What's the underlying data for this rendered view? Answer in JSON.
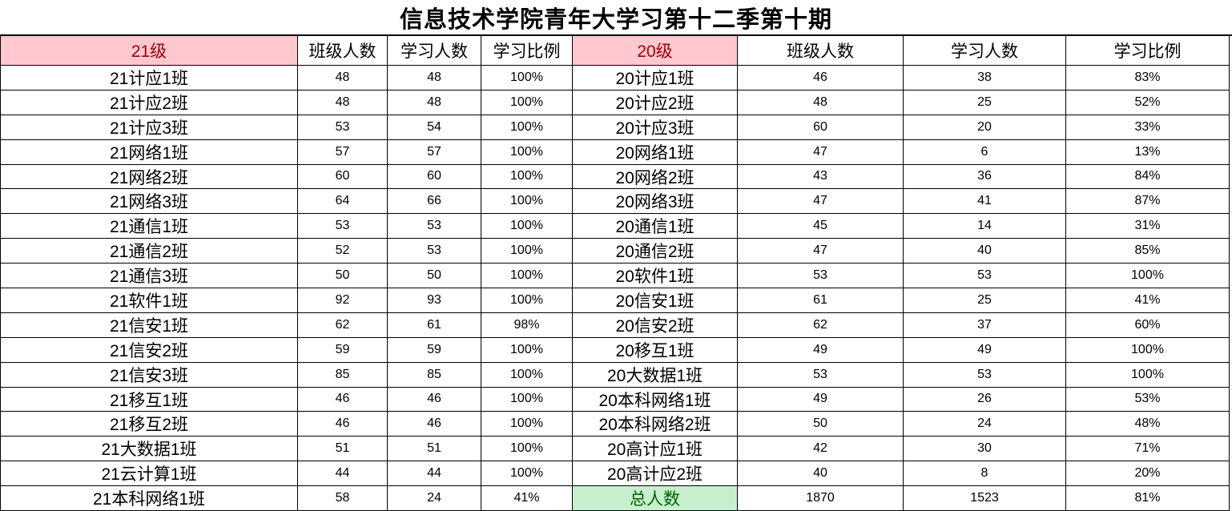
{
  "title": "信息技术学院青年大学习第十二季第十期",
  "colors": {
    "group_header_bg": "#FFC7CE",
    "group_header_text": "#9C0006",
    "total_bg": "#C6EFCE",
    "total_text": "#006100",
    "border": "#000000"
  },
  "left_table": {
    "group_label": "21级",
    "columns": [
      "班级人数",
      "学习人数",
      "学习比例"
    ],
    "rows": [
      {
        "name": "21计应1班",
        "size": "48",
        "learners": "48",
        "ratio": "100%"
      },
      {
        "name": "21计应2班",
        "size": "48",
        "learners": "48",
        "ratio": "100%"
      },
      {
        "name": "21计应3班",
        "size": "53",
        "learners": "54",
        "ratio": "100%"
      },
      {
        "name": "21网络1班",
        "size": "57",
        "learners": "57",
        "ratio": "100%"
      },
      {
        "name": "21网络2班",
        "size": "60",
        "learners": "60",
        "ratio": "100%"
      },
      {
        "name": "21网络3班",
        "size": "64",
        "learners": "66",
        "ratio": "100%"
      },
      {
        "name": "21通信1班",
        "size": "53",
        "learners": "53",
        "ratio": "100%"
      },
      {
        "name": "21通信2班",
        "size": "52",
        "learners": "53",
        "ratio": "100%"
      },
      {
        "name": "21通信3班",
        "size": "50",
        "learners": "50",
        "ratio": "100%"
      },
      {
        "name": "21软件1班",
        "size": "92",
        "learners": "93",
        "ratio": "100%"
      },
      {
        "name": "21信安1班",
        "size": "62",
        "learners": "61",
        "ratio": "98%"
      },
      {
        "name": "21信安2班",
        "size": "59",
        "learners": "59",
        "ratio": "100%"
      },
      {
        "name": "21信安3班",
        "size": "85",
        "learners": "85",
        "ratio": "100%"
      },
      {
        "name": "21移互1班",
        "size": "46",
        "learners": "46",
        "ratio": "100%"
      },
      {
        "name": "21移互2班",
        "size": "46",
        "learners": "46",
        "ratio": "100%"
      },
      {
        "name": "21大数据1班",
        "size": "51",
        "learners": "51",
        "ratio": "100%"
      },
      {
        "name": "21云计算1班",
        "size": "44",
        "learners": "44",
        "ratio": "100%"
      },
      {
        "name": "21本科网络1班",
        "size": "58",
        "learners": "24",
        "ratio": "41%"
      }
    ]
  },
  "right_table": {
    "group_label": "20级",
    "columns": [
      "班级人数",
      "学习人数",
      "学习比例"
    ],
    "rows": [
      {
        "name": "20计应1班",
        "size": "46",
        "learners": "38",
        "ratio": "83%"
      },
      {
        "name": "20计应2班",
        "size": "48",
        "learners": "25",
        "ratio": "52%"
      },
      {
        "name": "20计应3班",
        "size": "60",
        "learners": "20",
        "ratio": "33%"
      },
      {
        "name": "20网络1班",
        "size": "47",
        "learners": "6",
        "ratio": "13%"
      },
      {
        "name": "20网络2班",
        "size": "43",
        "learners": "36",
        "ratio": "84%"
      },
      {
        "name": "20网络3班",
        "size": "47",
        "learners": "41",
        "ratio": "87%"
      },
      {
        "name": "20通信1班",
        "size": "45",
        "learners": "14",
        "ratio": "31%"
      },
      {
        "name": "20通信2班",
        "size": "47",
        "learners": "40",
        "ratio": "85%"
      },
      {
        "name": "20软件1班",
        "size": "53",
        "learners": "53",
        "ratio": "100%"
      },
      {
        "name": "20信安1班",
        "size": "61",
        "learners": "25",
        "ratio": "41%"
      },
      {
        "name": "20信安2班",
        "size": "62",
        "learners": "37",
        "ratio": "60%"
      },
      {
        "name": "20移互1班",
        "size": "49",
        "learners": "49",
        "ratio": "100%"
      },
      {
        "name": "20大数据1班",
        "size": "53",
        "learners": "53",
        "ratio": "100%"
      },
      {
        "name": "20本科网络1班",
        "size": "49",
        "learners": "26",
        "ratio": "53%"
      },
      {
        "name": "20本科网络2班",
        "size": "50",
        "learners": "24",
        "ratio": "48%"
      },
      {
        "name": "20高计应1班",
        "size": "42",
        "learners": "30",
        "ratio": "71%"
      },
      {
        "name": "20高计应2班",
        "size": "40",
        "learners": "8",
        "ratio": "20%"
      }
    ],
    "total": {
      "name": "总人数",
      "size": "1870",
      "learners": "1523",
      "ratio": "81%"
    }
  }
}
